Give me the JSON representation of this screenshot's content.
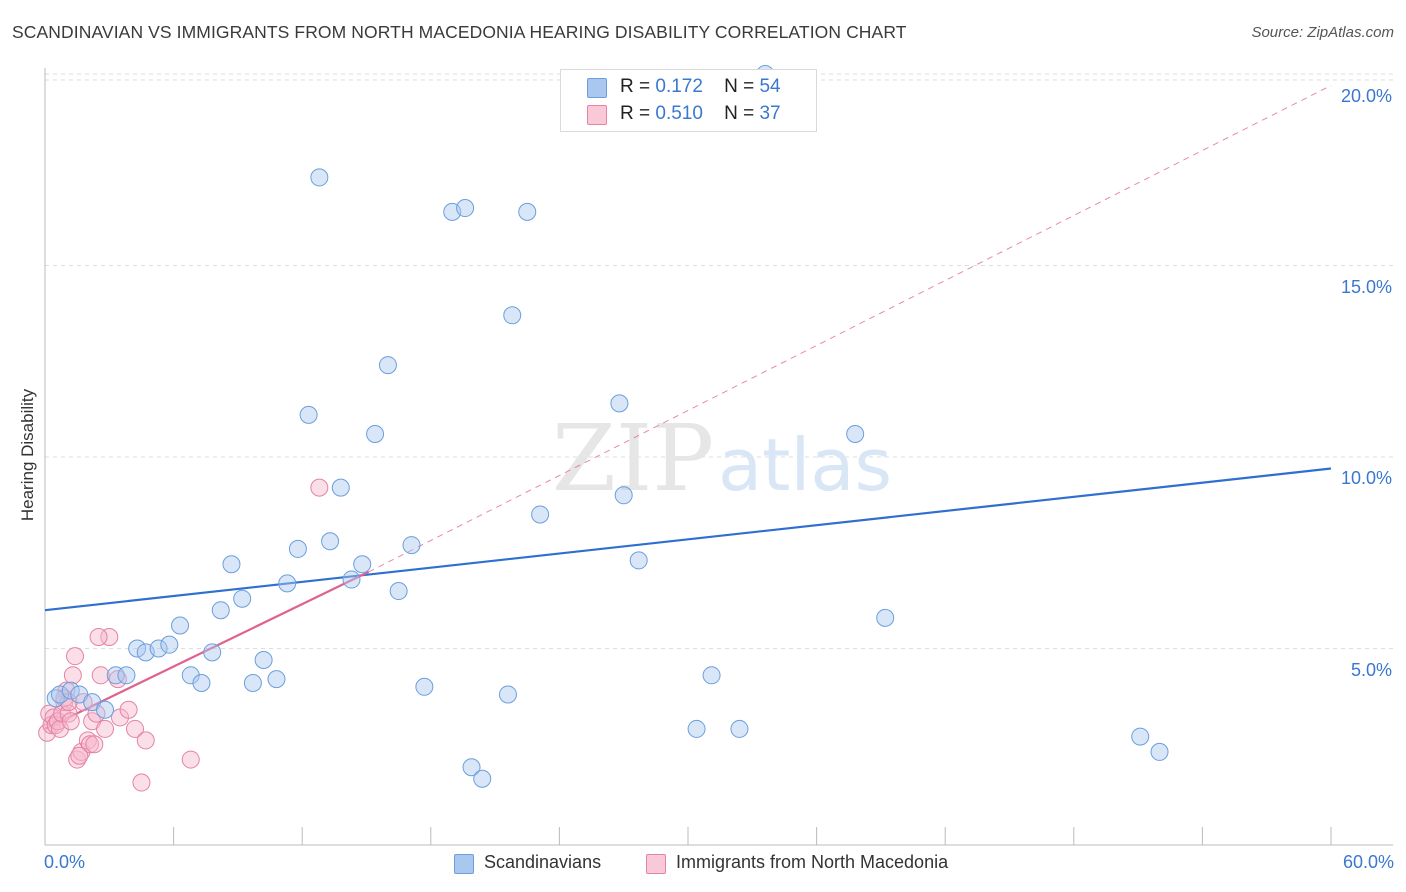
{
  "title": "SCANDINAVIAN VS IMMIGRANTS FROM NORTH MACEDONIA HEARING DISABILITY CORRELATION CHART",
  "source": "Source: ZipAtlas.com",
  "watermark": {
    "zip": "ZIP",
    "atlas": "atlas"
  },
  "legend": {
    "series1": {
      "r_label": "R =",
      "r_value": "0.172",
      "n_label": "N =",
      "n_value": "54"
    },
    "series2": {
      "r_label": "R =",
      "r_value": "0.510",
      "n_label": "N =",
      "n_value": "37"
    }
  },
  "colors": {
    "blue_fill": "#aac8ef",
    "blue_stroke": "#6a9fdc",
    "blue_line": "#2f6fcf",
    "pink_fill": "#f6b8cc",
    "pink_stroke": "#e483a4",
    "pink_line": "#e0628f",
    "grid": "#dddddd",
    "tick_text": "#3a78d0"
  },
  "chart_data": {
    "type": "scatter",
    "title": "SCANDINAVIAN VS IMMIGRANTS FROM NORTH MACEDONIA HEARING DISABILITY CORRELATION CHART",
    "xlabel": "",
    "ylabel": "Hearing Disability",
    "xlim": [
      0,
      60
    ],
    "ylim": [
      0,
      20.5
    ],
    "x_tick_labels": [
      "0.0%",
      "60.0%"
    ],
    "y_ticks": [
      5,
      10,
      15,
      20
    ],
    "y_tick_labels": [
      "5.0%",
      "10.0%",
      "15.0%",
      "20.0%"
    ],
    "series": [
      {
        "name": "Scandinavians",
        "color": "#6a9fdc",
        "points": [
          [
            0.5,
            3.7
          ],
          [
            0.7,
            3.8
          ],
          [
            1.2,
            3.9
          ],
          [
            1.6,
            3.8
          ],
          [
            2.2,
            3.6
          ],
          [
            2.8,
            3.4
          ],
          [
            3.3,
            4.3
          ],
          [
            3.8,
            4.3
          ],
          [
            4.3,
            5.0
          ],
          [
            4.7,
            4.9
          ],
          [
            5.3,
            5.0
          ],
          [
            5.8,
            5.1
          ],
          [
            6.3,
            5.6
          ],
          [
            6.8,
            4.3
          ],
          [
            7.3,
            4.1
          ],
          [
            7.8,
            4.9
          ],
          [
            8.2,
            6.0
          ],
          [
            8.7,
            7.2
          ],
          [
            9.2,
            6.3
          ],
          [
            9.7,
            4.1
          ],
          [
            10.2,
            4.7
          ],
          [
            10.8,
            4.2
          ],
          [
            11.3,
            6.7
          ],
          [
            11.8,
            7.6
          ],
          [
            12.3,
            11.1
          ],
          [
            12.8,
            17.3
          ],
          [
            13.3,
            7.8
          ],
          [
            13.8,
            9.2
          ],
          [
            14.3,
            6.8
          ],
          [
            14.8,
            7.2
          ],
          [
            15.4,
            10.6
          ],
          [
            16.0,
            12.4
          ],
          [
            16.5,
            6.5
          ],
          [
            17.1,
            7.7
          ],
          [
            17.7,
            4.0
          ],
          [
            19.0,
            16.4
          ],
          [
            19.6,
            16.5
          ],
          [
            19.9,
            1.9
          ],
          [
            20.4,
            1.6
          ],
          [
            21.6,
            3.8
          ],
          [
            21.8,
            13.7
          ],
          [
            22.5,
            16.4
          ],
          [
            23.1,
            8.5
          ],
          [
            26.8,
            11.4
          ],
          [
            27.0,
            9.0
          ],
          [
            27.7,
            7.3
          ],
          [
            30.4,
            2.9
          ],
          [
            31.1,
            4.3
          ],
          [
            32.4,
            2.9
          ],
          [
            33.6,
            20.0
          ],
          [
            37.8,
            10.6
          ],
          [
            39.2,
            5.8
          ],
          [
            51.1,
            2.7
          ],
          [
            52.0,
            2.3
          ]
        ]
      },
      {
        "name": "Immigrants from North Macedonia",
        "color": "#e483a4",
        "points": [
          [
            0.1,
            2.8
          ],
          [
            0.2,
            3.3
          ],
          [
            0.3,
            3.0
          ],
          [
            0.4,
            3.2
          ],
          [
            0.5,
            3.0
          ],
          [
            0.6,
            3.1
          ],
          [
            0.7,
            2.9
          ],
          [
            0.8,
            3.3
          ],
          [
            0.9,
            3.6
          ],
          [
            1.0,
            3.9
          ],
          [
            1.1,
            3.3
          ],
          [
            1.2,
            3.1
          ],
          [
            1.3,
            4.3
          ],
          [
            1.4,
            4.8
          ],
          [
            1.5,
            2.1
          ],
          [
            1.7,
            2.3
          ],
          [
            1.8,
            3.6
          ],
          [
            2.0,
            2.6
          ],
          [
            2.1,
            2.5
          ],
          [
            2.2,
            3.1
          ],
          [
            2.4,
            3.3
          ],
          [
            2.6,
            4.3
          ],
          [
            2.8,
            2.9
          ],
          [
            3.0,
            5.3
          ],
          [
            3.4,
            4.2
          ],
          [
            3.5,
            3.2
          ],
          [
            3.9,
            3.4
          ],
          [
            4.2,
            2.9
          ],
          [
            4.5,
            1.5
          ],
          [
            4.7,
            2.6
          ],
          [
            6.8,
            2.1
          ],
          [
            12.8,
            9.2
          ],
          [
            2.5,
            5.3
          ],
          [
            2.3,
            2.5
          ],
          [
            1.6,
            2.2
          ],
          [
            0.9,
            3.7
          ],
          [
            1.1,
            3.6
          ]
        ]
      }
    ],
    "trendlines": [
      {
        "series": "Scandinavians",
        "x": [
          0,
          60
        ],
        "y": [
          6.0,
          9.7
        ],
        "style": "solid"
      },
      {
        "series": "Immigrants from North Macedonia",
        "x": [
          0,
          15.1
        ],
        "y": [
          2.9,
          7.0
        ],
        "style": "solid"
      },
      {
        "series": "Immigrants from North Macedonia",
        "x": [
          15.1,
          60
        ],
        "y": [
          7.0,
          19.7
        ],
        "style": "dashed"
      }
    ]
  },
  "bottom_legend": {
    "item1": "Scandinavians",
    "item2": "Immigrants from North Macedonia"
  }
}
